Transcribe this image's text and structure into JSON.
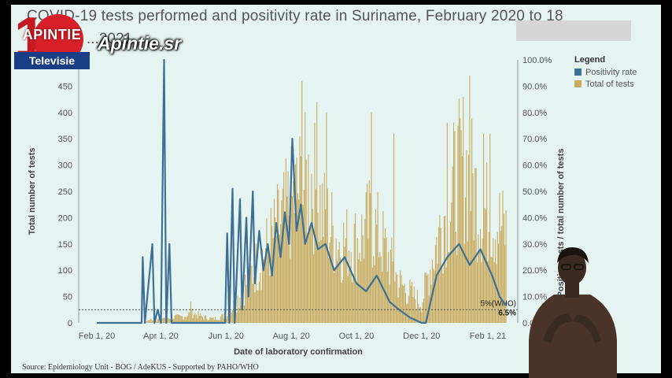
{
  "chart_data": {
    "type": "bar",
    "title": "COVID-19 tests performed and positivity rate in Suriname, February 2020 to 18",
    "subtitle": "...2021",
    "xlabel": "Date of laboratory confirmation",
    "ylabel": "Total number of tests",
    "y2label": "Positive tests / total number of tests",
    "x_ticks": [
      "Feb 1, 20",
      "Apr 1, 20",
      "Jun 1, 20",
      "Aug 1, 20",
      "Oct 1, 20",
      "Dec 1, 20",
      "Feb 1, 21"
    ],
    "y_ticks": [
      0,
      50,
      100,
      150,
      200,
      250,
      300,
      350,
      400,
      450
    ],
    "y2_ticks": [
      "0.0%",
      "10.0%",
      "20.0%",
      "30.0%",
      "40.0%",
      "50.0%",
      "60.0%",
      "70.0%",
      "80.0%",
      "90.0%",
      "100.0%"
    ],
    "ylim": [
      0,
      500
    ],
    "y2lim": [
      0,
      100
    ],
    "legend": {
      "title": "Legend",
      "position": "top-right",
      "items": [
        {
          "label": "Positivity rate",
          "color": "#3e6f95"
        },
        {
          "label": "Total of tests",
          "color": "#c8ab5e"
        }
      ]
    },
    "reference_line": {
      "label": "5%(WHO)",
      "value_percent": 5
    },
    "last_value_label": "6.5%",
    "series": [
      {
        "name": "Total of tests",
        "type": "bar",
        "color": "#c8ab5e",
        "keypoints": [
          [
            "2020-02-01",
            0
          ],
          [
            "2020-03-15",
            0
          ],
          [
            "2020-03-20",
            5
          ],
          [
            "2020-04-01",
            10
          ],
          [
            "2020-04-20",
            12
          ],
          [
            "2020-05-01",
            20
          ],
          [
            "2020-05-10",
            12
          ],
          [
            "2020-05-20",
            8
          ],
          [
            "2020-06-01",
            15
          ],
          [
            "2020-06-10",
            40
          ],
          [
            "2020-06-25",
            100
          ],
          [
            "2020-07-10",
            150
          ],
          [
            "2020-07-25",
            210
          ],
          [
            "2020-08-10",
            270
          ],
          [
            "2020-08-20",
            290
          ],
          [
            "2020-09-01",
            210
          ],
          [
            "2020-09-15",
            160
          ],
          [
            "2020-10-01",
            160
          ],
          [
            "2020-10-15",
            200
          ],
          [
            "2020-10-25",
            160
          ],
          [
            "2020-11-10",
            80
          ],
          [
            "2020-11-20",
            60
          ],
          [
            "2020-12-01",
            40
          ],
          [
            "2020-12-10",
            120
          ],
          [
            "2020-12-25",
            240
          ],
          [
            "2021-01-10",
            320
          ],
          [
            "2021-01-25",
            230
          ],
          [
            "2021-02-10",
            200
          ],
          [
            "2021-02-18",
            180
          ]
        ],
        "peaks": [
          [
            "2020-04-29",
            40
          ],
          [
            "2020-08-11",
            460
          ],
          [
            "2020-08-25",
            420
          ],
          [
            "2020-09-03",
            400
          ],
          [
            "2020-10-15",
            400
          ],
          [
            "2020-11-05",
            360
          ],
          [
            "2020-12-25",
            380
          ],
          [
            "2021-01-15",
            470
          ],
          [
            "2021-01-28",
            360
          ],
          [
            "2021-02-03",
            360
          ]
        ]
      },
      {
        "name": "Positivity rate",
        "type": "line",
        "color": "#3e6f95",
        "points": [
          [
            "2020-02-01",
            0
          ],
          [
            "2020-03-01",
            0
          ],
          [
            "2020-03-14",
            0
          ],
          [
            "2020-03-15",
            25
          ],
          [
            "2020-03-17",
            0
          ],
          [
            "2020-03-24",
            30
          ],
          [
            "2020-03-26",
            0
          ],
          [
            "2020-03-29",
            5
          ],
          [
            "2020-04-01",
            0
          ],
          [
            "2020-04-04",
            100
          ],
          [
            "2020-04-06",
            0
          ],
          [
            "2020-04-09",
            30
          ],
          [
            "2020-04-11",
            0
          ],
          [
            "2020-05-01",
            0
          ],
          [
            "2020-05-31",
            0
          ],
          [
            "2020-06-02",
            34
          ],
          [
            "2020-06-04",
            0
          ],
          [
            "2020-06-07",
            51
          ],
          [
            "2020-06-09",
            0
          ],
          [
            "2020-06-14",
            47
          ],
          [
            "2020-06-16",
            5
          ],
          [
            "2020-06-20",
            40
          ],
          [
            "2020-06-22",
            10
          ],
          [
            "2020-06-26",
            50
          ],
          [
            "2020-06-28",
            15
          ],
          [
            "2020-07-02",
            35
          ],
          [
            "2020-07-06",
            20
          ],
          [
            "2020-07-10",
            30
          ],
          [
            "2020-07-14",
            18
          ],
          [
            "2020-07-18",
            38
          ],
          [
            "2020-07-22",
            25
          ],
          [
            "2020-07-26",
            42
          ],
          [
            "2020-07-30",
            30
          ],
          [
            "2020-08-02",
            70
          ],
          [
            "2020-08-06",
            35
          ],
          [
            "2020-08-10",
            45
          ],
          [
            "2020-08-14",
            30
          ],
          [
            "2020-08-20",
            38
          ],
          [
            "2020-08-26",
            28
          ],
          [
            "2020-09-02",
            30
          ],
          [
            "2020-09-10",
            20
          ],
          [
            "2020-09-20",
            25
          ],
          [
            "2020-10-01",
            15
          ],
          [
            "2020-10-10",
            12
          ],
          [
            "2020-10-20",
            18
          ],
          [
            "2020-11-01",
            8
          ],
          [
            "2020-11-10",
            5
          ],
          [
            "2020-11-20",
            2
          ],
          [
            "2020-12-01",
            0
          ],
          [
            "2020-12-05",
            0
          ],
          [
            "2020-12-15",
            18
          ],
          [
            "2020-12-25",
            25
          ],
          [
            "2021-01-05",
            30
          ],
          [
            "2021-01-15",
            22
          ],
          [
            "2021-01-25",
            28
          ],
          [
            "2021-02-05",
            18
          ],
          [
            "2021-02-12",
            10
          ],
          [
            "2021-02-18",
            6.5
          ]
        ]
      }
    ]
  },
  "overlay": {
    "logo_name": "APINTIE",
    "logo_tv": "Televisie",
    "logo_number": "1",
    "site": "Apintie.sr",
    "source": "Source: Epidemiology Unit - BOG / AdeKUS - Supported by PAHO/WHO"
  }
}
